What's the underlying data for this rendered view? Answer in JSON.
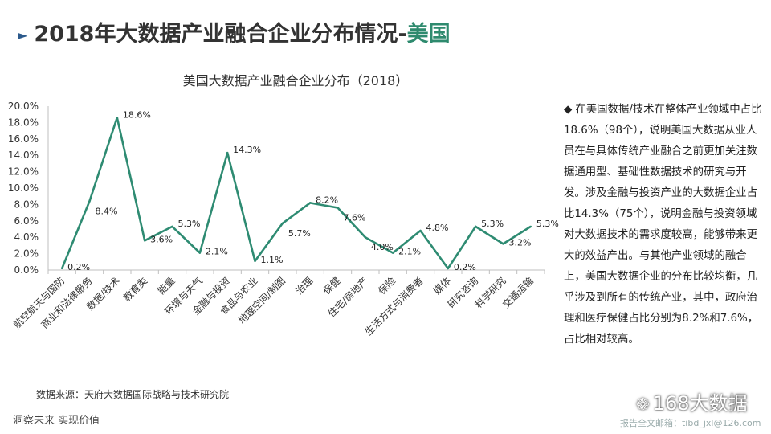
{
  "page": {
    "title_prefix": "2018年大数据产业融合企业分布情况-",
    "title_highlight": "美国",
    "marker": "►"
  },
  "chart_data": {
    "type": "line",
    "title": "美国大数据产业融合企业分布（2018）",
    "categories": [
      "航空航天与国防",
      "商业和法律服务",
      "数据/技术",
      "教育类",
      "能量",
      "环境与天气",
      "金融与投资",
      "食品与农业",
      "地理空间/制图",
      "治理",
      "保健",
      "住宅/房地产",
      "保险",
      "生活方式与消费者",
      "媒体",
      "研究咨询",
      "科学研究",
      "交通运输"
    ],
    "values": [
      0.2,
      8.4,
      18.6,
      3.6,
      5.3,
      2.1,
      14.3,
      1.1,
      5.7,
      8.2,
      7.6,
      4.0,
      2.1,
      4.8,
      0.2,
      5.3,
      3.2,
      5.3
    ],
    "data_labels": [
      "0.2%",
      "8.4%",
      "18.6%",
      "3.6%",
      "5.3%",
      "2.1%",
      "14.3%",
      "1.1%",
      "5.7%",
      "8.2%",
      "7.6%",
      "4.0%",
      "2.1%",
      "4.8%",
      "0.2%",
      "5.3%",
      "3.2%",
      "5.3%"
    ],
    "y_ticks": [
      "0.0%",
      "2.0%",
      "4.0%",
      "6.0%",
      "8.0%",
      "10.0%",
      "12.0%",
      "14.0%",
      "16.0%",
      "18.0%",
      "20.0%"
    ],
    "ylim": [
      0,
      20
    ],
    "line_color": "#2e8b72",
    "grid": false,
    "legend": "none"
  },
  "side_text": {
    "bullet": "◆",
    "paragraph": "在美国数据/技术在整体产业领域中占比18.6%（98个），说明美国大数据从业人员在与具体传统产业融合之前更加关注数据通用型、基础性数据技术的研究与开发。涉及金融与投资产业的大数据企业占比14.3%（75个），说明金融与投资领域对大数据技术的需求度较高，能够带来更大的效益产出。与其他产业领域的融合上，美国大数据企业的分布比较均衡，几乎涉及到所有的传统产业，其中，政府治理和医疗保健占比分别为8.2%和7.6%，占比相对较高。"
  },
  "source": "数据来源：天府大数据国际战略与技术研究院",
  "footer_left": "洞察未来 实现价值",
  "watermark": {
    "brand": "168大数据",
    "mailbox": "报告全文邮箱：tibd_jxl@126.com"
  }
}
